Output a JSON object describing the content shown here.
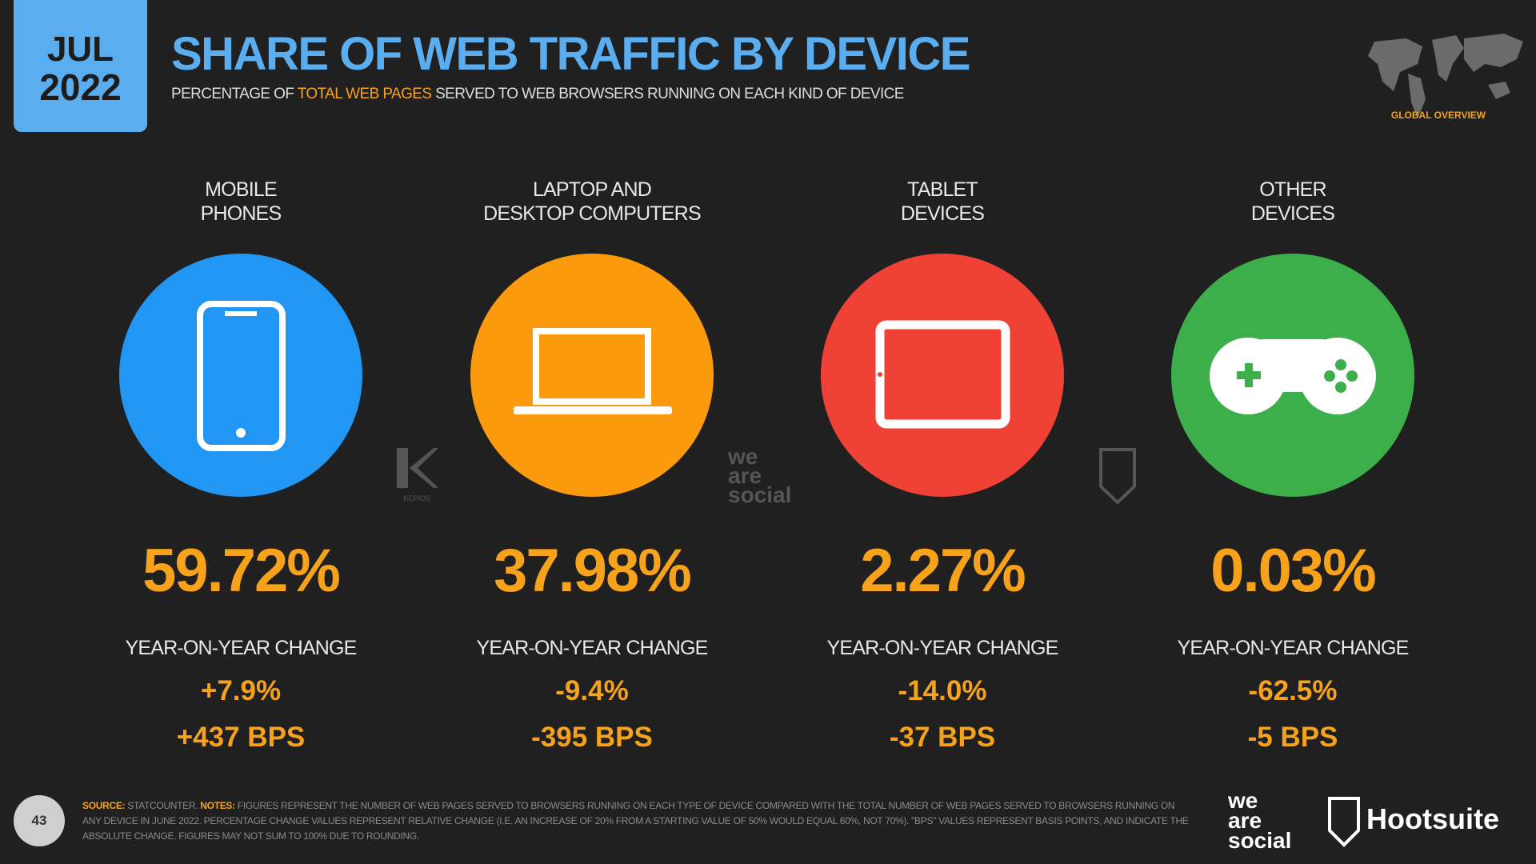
{
  "header": {
    "month": "JUL",
    "year": "2022",
    "title": "SHARE OF WEB TRAFFIC BY DEVICE",
    "subtitle_before": "PERCENTAGE OF",
    "subtitle_highlight": "TOTAL WEB PAGES",
    "subtitle_after": "SERVED TO WEB BROWSERS RUNNING ON EACH KIND OF DEVICE",
    "badge": "GLOBAL OVERVIEW"
  },
  "devices": [
    {
      "label": [
        "MOBILE",
        "PHONES"
      ],
      "share": "59.72%",
      "change_label": "YEAR-ON-YEAR CHANGE",
      "relative_change": "+7.9%",
      "absolute_change": "+437 BPS"
    },
    {
      "label": [
        "LAPTOP AND",
        "DESKTOP COMPUTERS"
      ],
      "share": "37.98%",
      "change_label": "YEAR-ON-YEAR CHANGE",
      "relative_change": "-9.4%",
      "absolute_change": "-395 BPS"
    },
    {
      "label": [
        "TABLET",
        "DEVICES"
      ],
      "share": "2.27%",
      "change_label": "YEAR-ON-YEAR CHANGE",
      "relative_change": "-14.0%",
      "absolute_change": "-37 BPS"
    },
    {
      "label": [
        "OTHER",
        "DEVICES"
      ],
      "share": "0.03%",
      "change_label": "YEAR-ON-YEAR CHANGE",
      "relative_change": "-62.5%",
      "absolute_change": "-5 BPS"
    }
  ],
  "watermarks": {
    "kepios": "KEPIOS",
    "we_are_social": [
      "we",
      "are",
      "social"
    ]
  },
  "footer": {
    "source_label": "SOURCE:",
    "source": "STATCOUNTER.",
    "notes_label": "NOTES:",
    "notes": "FIGURES REPRESENT THE NUMBER OF WEB PAGES SERVED TO BROWSERS RUNNING ON EACH TYPE OF DEVICE COMPARED WITH THE TOTAL NUMBER OF WEB PAGES SERVED TO BROWSERS RUNNING ON ANY DEVICE IN JUNE 2022. PERCENTAGE CHANGE VALUES REPRESENT RELATIVE CHANGE (I.E. AN INCREASE OF 20% FROM A STARTING VALUE OF 50% WOULD EQUAL 60%, NOT 70%). \"BPS\" VALUES REPRESENT BASIS POINTS, AND INDICATE THE ABSOLUTE CHANGE. FIGURES MAY NOT SUM TO 100% DUE TO ROUNDING.",
    "page": "43",
    "logo_was": [
      "we",
      "are",
      "social"
    ],
    "logo_hootsuite": "Hootsuite"
  }
}
